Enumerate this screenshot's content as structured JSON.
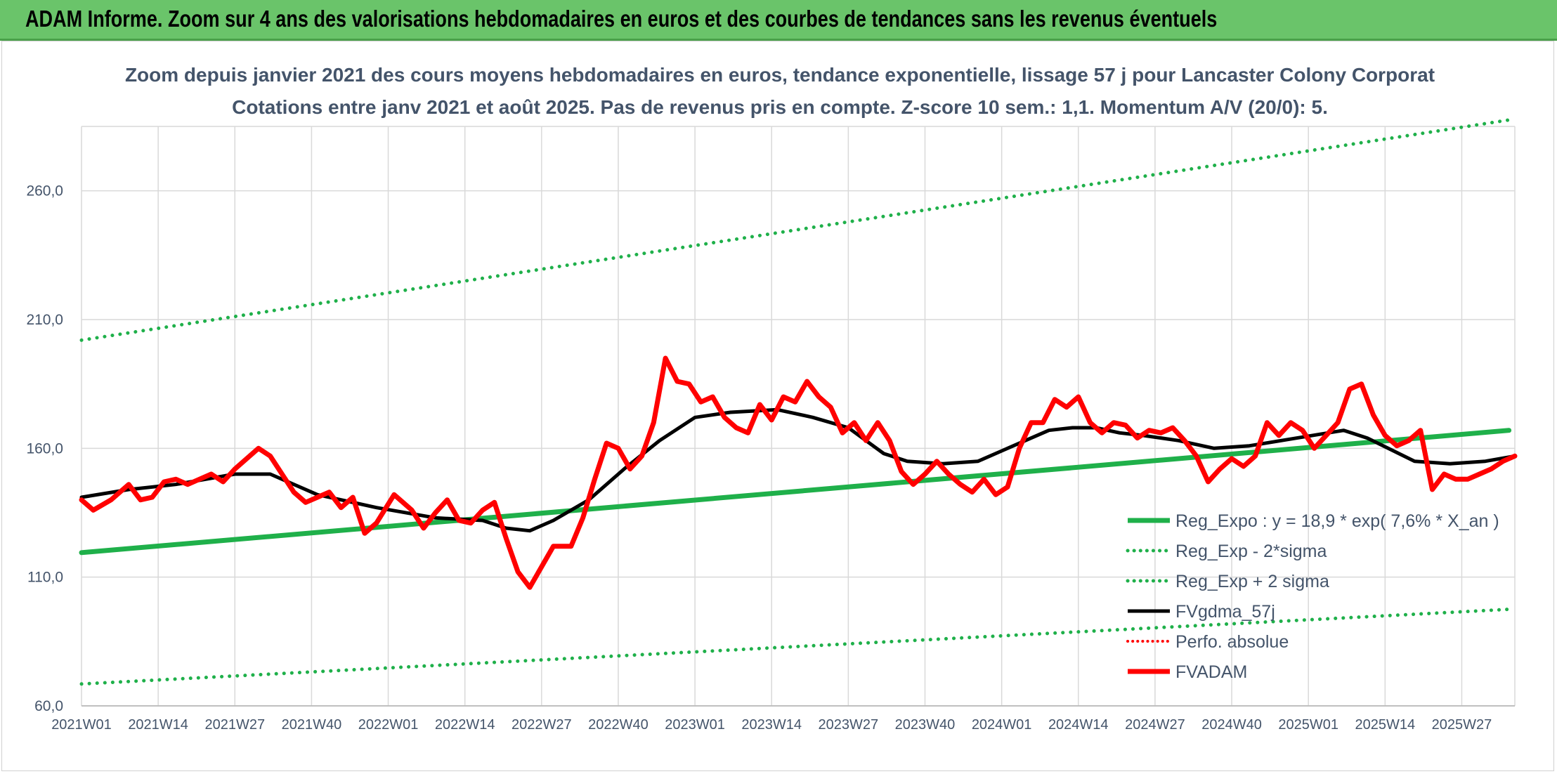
{
  "banner": {
    "title": "ADAM Informe. Zoom sur 4 ans des valorisations hebdomadaires en euros et des courbes de tendances sans les revenus éventuels"
  },
  "colors": {
    "banner_bg": "#6ac46a",
    "green": "#1fb04a",
    "black": "#000000",
    "red": "#ff0000",
    "title_text": "#44546a",
    "grid": "#d9d9d9"
  },
  "chart_data": {
    "type": "line",
    "title": "Zoom depuis janvier 2021 des cours moyens hebdomadaires en euros, tendance exponentielle, lissage 57 j pour Lancaster Colony Corporat",
    "subtitle": "Cotations entre janv 2021 et août 2025. Pas de revenus pris en compte. Z-score 10 sem.: 1,1. Momentum A/V (20/0): 5.",
    "xlabel": "",
    "ylabel": "",
    "ylim": [
      60,
      285
    ],
    "y_ticks": [
      "60,0",
      "110,0",
      "160,0",
      "210,0",
      "260,0"
    ],
    "y_tick_values": [
      60,
      110,
      160,
      210,
      260
    ],
    "x_ticks": [
      "2021W01",
      "2021W14",
      "2021W27",
      "2021W40",
      "2022W01",
      "2022W14",
      "2022W27",
      "2022W40",
      "2023W01",
      "2023W14",
      "2023W27",
      "2023W40",
      "2024W01",
      "2024W14",
      "2024W27",
      "2024W40",
      "2025W01",
      "2025W14",
      "2025W27"
    ],
    "x_tick_weeks": [
      0,
      13,
      26,
      39,
      52,
      65,
      78,
      91,
      104,
      117,
      130,
      143,
      156,
      169,
      182,
      195,
      208,
      221,
      234
    ],
    "x_range_weeks": [
      0,
      243
    ],
    "grid": true,
    "legend_position": "bottom-right",
    "series": [
      {
        "name": "Reg_Expo : y = 18,9 * exp( 7,6% *  X_an )",
        "style": "thick-solid",
        "color": "#1fb04a",
        "points": [
          [
            0,
            119.5
          ],
          [
            242,
            167
          ]
        ]
      },
      {
        "name": "Reg_Exp - 2*sigma",
        "style": "dotted",
        "color": "#1fb04a",
        "points": [
          [
            0,
            68.5
          ],
          [
            242,
            97.5
          ]
        ]
      },
      {
        "name": "Reg_Exp + 2 sigma",
        "style": "dotted",
        "color": "#1fb04a",
        "points": [
          [
            0,
            202
          ],
          [
            242,
            287.5
          ]
        ]
      },
      {
        "name": "FVgdma_57j",
        "style": "solid",
        "color": "#000000",
        "points": [
          [
            0,
            141
          ],
          [
            8,
            144
          ],
          [
            16,
            146
          ],
          [
            26,
            150
          ],
          [
            32,
            150
          ],
          [
            40,
            142
          ],
          [
            50,
            137
          ],
          [
            60,
            133
          ],
          [
            68,
            132
          ],
          [
            72,
            129
          ],
          [
            76,
            128
          ],
          [
            80,
            132
          ],
          [
            86,
            140
          ],
          [
            92,
            152
          ],
          [
            98,
            163
          ],
          [
            104,
            172
          ],
          [
            110,
            174
          ],
          [
            118,
            175
          ],
          [
            124,
            172
          ],
          [
            130,
            168
          ],
          [
            136,
            158
          ],
          [
            140,
            155
          ],
          [
            146,
            154
          ],
          [
            152,
            155
          ],
          [
            156,
            159
          ],
          [
            160,
            163
          ],
          [
            164,
            167
          ],
          [
            168,
            168
          ],
          [
            172,
            168
          ],
          [
            176,
            166
          ],
          [
            180,
            165
          ],
          [
            186,
            163
          ],
          [
            192,
            160
          ],
          [
            198,
            161
          ],
          [
            206,
            164
          ],
          [
            214,
            167
          ],
          [
            218,
            164
          ],
          [
            226,
            155
          ],
          [
            232,
            154
          ],
          [
            238,
            155
          ],
          [
            243,
            157
          ]
        ]
      },
      {
        "name": "Perfo. absolue",
        "style": "dotted",
        "color": "#ff0000",
        "points": []
      },
      {
        "name": "FVADAM",
        "style": "thick-solid",
        "color": "#ff0000",
        "points": [
          [
            0,
            140
          ],
          [
            2,
            136
          ],
          [
            5,
            140
          ],
          [
            8,
            146
          ],
          [
            10,
            140
          ],
          [
            12,
            141
          ],
          [
            14,
            147
          ],
          [
            16,
            148
          ],
          [
            18,
            146
          ],
          [
            20,
            148
          ],
          [
            22,
            150
          ],
          [
            24,
            147
          ],
          [
            26,
            152
          ],
          [
            28,
            156
          ],
          [
            30,
            160
          ],
          [
            32,
            157
          ],
          [
            34,
            150
          ],
          [
            36,
            143
          ],
          [
            38,
            139
          ],
          [
            40,
            141
          ],
          [
            42,
            143
          ],
          [
            44,
            137
          ],
          [
            46,
            141
          ],
          [
            48,
            127
          ],
          [
            50,
            131
          ],
          [
            53,
            142
          ],
          [
            56,
            136
          ],
          [
            58,
            129
          ],
          [
            60,
            135
          ],
          [
            62,
            140
          ],
          [
            64,
            132
          ],
          [
            66,
            131
          ],
          [
            68,
            136
          ],
          [
            70,
            139
          ],
          [
            72,
            125
          ],
          [
            74,
            112
          ],
          [
            76,
            106
          ],
          [
            78,
            114
          ],
          [
            80,
            122
          ],
          [
            83,
            122
          ],
          [
            85,
            133
          ],
          [
            87,
            148
          ],
          [
            89,
            162
          ],
          [
            91,
            160
          ],
          [
            93,
            152
          ],
          [
            95,
            157
          ],
          [
            97,
            170
          ],
          [
            99,
            195
          ],
          [
            101,
            186
          ],
          [
            103,
            185
          ],
          [
            105,
            178
          ],
          [
            107,
            180
          ],
          [
            109,
            172
          ],
          [
            111,
            168
          ],
          [
            113,
            166
          ],
          [
            115,
            177
          ],
          [
            117,
            171
          ],
          [
            119,
            180
          ],
          [
            121,
            178
          ],
          [
            123,
            186
          ],
          [
            125,
            180
          ],
          [
            127,
            176
          ],
          [
            129,
            166
          ],
          [
            131,
            170
          ],
          [
            133,
            163
          ],
          [
            135,
            170
          ],
          [
            137,
            163
          ],
          [
            139,
            151
          ],
          [
            141,
            146
          ],
          [
            143,
            150
          ],
          [
            145,
            155
          ],
          [
            147,
            150
          ],
          [
            149,
            146
          ],
          [
            151,
            143
          ],
          [
            153,
            148
          ],
          [
            155,
            142
          ],
          [
            157,
            145
          ],
          [
            159,
            160
          ],
          [
            161,
            170
          ],
          [
            163,
            170
          ],
          [
            165,
            179
          ],
          [
            167,
            176
          ],
          [
            169,
            180
          ],
          [
            171,
            170
          ],
          [
            173,
            166
          ],
          [
            175,
            170
          ],
          [
            177,
            169
          ],
          [
            179,
            164
          ],
          [
            181,
            167
          ],
          [
            183,
            166
          ],
          [
            185,
            168
          ],
          [
            187,
            163
          ],
          [
            189,
            157
          ],
          [
            191,
            147
          ],
          [
            193,
            152
          ],
          [
            195,
            156
          ],
          [
            197,
            153
          ],
          [
            199,
            157
          ],
          [
            201,
            170
          ],
          [
            203,
            165
          ],
          [
            205,
            170
          ],
          [
            207,
            167
          ],
          [
            209,
            160
          ],
          [
            211,
            165
          ],
          [
            213,
            170
          ],
          [
            215,
            183
          ],
          [
            217,
            185
          ],
          [
            219,
            173
          ],
          [
            221,
            165
          ],
          [
            223,
            161
          ],
          [
            225,
            163
          ],
          [
            227,
            167
          ],
          [
            229,
            144
          ],
          [
            231,
            150
          ],
          [
            233,
            148
          ],
          [
            235,
            148
          ],
          [
            237,
            150
          ],
          [
            239,
            152
          ],
          [
            241,
            155
          ],
          [
            243,
            157
          ]
        ]
      }
    ]
  }
}
